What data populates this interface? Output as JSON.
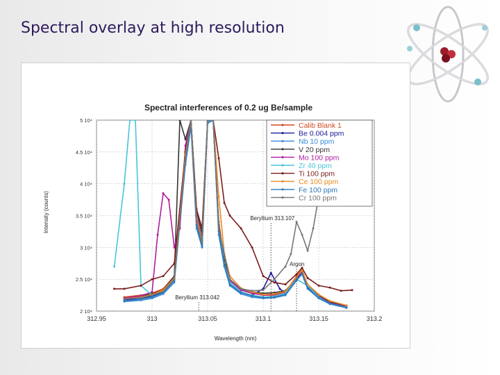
{
  "slide": {
    "title": "Spectral overlay at high resolution"
  },
  "logo": {
    "icon": "atom-icon"
  },
  "chart_data": {
    "type": "line",
    "title": "Spectral interferences of 0.2 ug Be/sample",
    "xlabel": "Wavelength (nm)",
    "ylabel": "Intensity (counts)",
    "xlim": [
      312.95,
      313.2
    ],
    "ylim": [
      20000,
      50000
    ],
    "x_ticks": [
      312.95,
      313,
      313.05,
      313.1,
      313.15,
      313.2
    ],
    "x_tick_labels": [
      "312.95",
      "313",
      "313.05",
      "313.1",
      "313.15",
      "313.2"
    ],
    "y_ticks": [
      20000,
      25000,
      30000,
      35000,
      40000,
      45000,
      50000
    ],
    "y_tick_labels": [
      "2 10⁴",
      "2.5 10⁴",
      "3 10⁴",
      "3.5 10⁴",
      "4 10⁴",
      "4.5 10⁴",
      "5 10⁴"
    ],
    "legend_position": "top-right",
    "annotations": [
      {
        "text": "Beryllium 313.042",
        "x": 313.042
      },
      {
        "text": "Beryllium 313.107",
        "x": 313.107
      },
      {
        "text": "Argon",
        "x": 313.13
      }
    ],
    "series": [
      {
        "name": "Calib Blank 1",
        "color": "#d04a1f",
        "x": [
          312.975,
          312.99,
          313.0,
          313.01,
          313.02,
          313.03,
          313.035,
          313.04,
          313.045,
          313.05,
          313.055,
          313.06,
          313.065,
          313.07,
          313.08,
          313.09,
          313.1,
          313.11,
          313.12,
          313.13,
          313.135,
          313.14,
          313.15,
          313.16,
          313.175
        ],
        "y": [
          22200,
          22500,
          22800,
          23500,
          25500,
          45000,
          50000,
          35000,
          31000,
          50000,
          50000,
          34000,
          28000,
          25000,
          23500,
          23000,
          22500,
          22500,
          23000,
          25500,
          26500,
          24000,
          22500,
          21500,
          20800
        ]
      },
      {
        "name": "Be 0.004 ppm",
        "color": "#1a1a9a",
        "x": [
          312.975,
          312.99,
          313.0,
          313.01,
          313.02,
          313.03,
          313.035,
          313.04,
          313.045,
          313.05,
          313.055,
          313.06,
          313.065,
          313.07,
          313.08,
          313.09,
          313.1,
          313.107,
          313.115,
          313.12,
          313.13,
          313.135,
          313.14,
          313.15,
          313.16,
          313.175
        ],
        "y": [
          21800,
          22000,
          22300,
          23000,
          25000,
          44000,
          50000,
          34000,
          30500,
          50000,
          50000,
          33000,
          27500,
          24500,
          23000,
          22500,
          23500,
          26000,
          23500,
          22800,
          25000,
          26000,
          23800,
          22300,
          21300,
          20700
        ]
      },
      {
        "name": "Nb 10 ppm",
        "color": "#3a8ad8",
        "x": [
          312.975,
          312.99,
          313.0,
          313.01,
          313.02,
          313.03,
          313.035,
          313.04,
          313.045,
          313.05,
          313.055,
          313.06,
          313.065,
          313.07,
          313.08,
          313.09,
          313.1,
          313.11,
          313.12,
          313.13,
          313.135,
          313.14,
          313.15,
          313.16,
          313.175
        ],
        "y": [
          21500,
          21700,
          22000,
          22700,
          24500,
          43000,
          49000,
          33000,
          30000,
          49500,
          50000,
          32000,
          27000,
          24000,
          22700,
          22200,
          22000,
          22100,
          22500,
          24800,
          25800,
          23500,
          22000,
          21100,
          20500
        ]
      },
      {
        "name": "V 20 ppm",
        "color": "#333333",
        "x": [
          312.975,
          312.99,
          313.0,
          313.01,
          313.02,
          313.025,
          313.03,
          313.035,
          313.04,
          313.045,
          313.05,
          313.055,
          313.06,
          313.065,
          313.07,
          313.08,
          313.09,
          313.1,
          313.11,
          313.12,
          313.13,
          313.135,
          313.14,
          313.15,
          313.16,
          313.175
        ],
        "y": [
          22000,
          22300,
          22700,
          23300,
          25500,
          50000,
          47000,
          50000,
          36000,
          32000,
          50000,
          50000,
          33500,
          28000,
          25000,
          23500,
          23000,
          22800,
          22900,
          23200,
          25200,
          26200,
          24000,
          22400,
          21400,
          20800
        ]
      },
      {
        "name": "Mo 100 ppm",
        "color": "#b01ca0",
        "x": [
          312.975,
          312.99,
          313.0,
          313.005,
          313.01,
          313.015,
          313.02,
          313.025,
          313.03,
          313.035,
          313.04,
          313.045,
          313.05,
          313.055,
          313.06,
          313.065,
          313.07,
          313.08,
          313.09,
          313.1,
          313.11,
          313.12,
          313.13,
          313.135,
          313.14,
          313.15,
          313.16,
          313.175
        ],
        "y": [
          22000,
          22400,
          23000,
          32000,
          38500,
          37500,
          30000,
          33000,
          46000,
          50000,
          35000,
          31000,
          50000,
          50000,
          33000,
          27500,
          24800,
          23300,
          22800,
          22500,
          22600,
          23000,
          25200,
          26200,
          23900,
          22300,
          21300,
          20700
        ]
      },
      {
        "name": "Zr 40 ppm",
        "color": "#48c4d8",
        "x": [
          312.966,
          312.975,
          312.98,
          312.985,
          312.99,
          313.0,
          313.01,
          313.02,
          313.03,
          313.035,
          313.04,
          313.045,
          313.05,
          313.055,
          313.06,
          313.065,
          313.07,
          313.08,
          313.09,
          313.1,
          313.11,
          313.12,
          313.13,
          313.14,
          313.15,
          313.16,
          313.175
        ],
        "y": [
          27000,
          40000,
          50000,
          50000,
          24000,
          22500,
          23200,
          25000,
          44000,
          50000,
          34000,
          30500,
          50000,
          50000,
          33000,
          27500,
          24500,
          23000,
          22500,
          22200,
          22300,
          22800,
          25000,
          24000,
          22200,
          21200,
          20600
        ]
      },
      {
        "name": "Ti 100 ppm",
        "color": "#7a1a1a",
        "x": [
          312.966,
          312.975,
          312.99,
          313.0,
          313.01,
          313.02,
          313.03,
          313.035,
          313.04,
          313.045,
          313.05,
          313.055,
          313.06,
          313.065,
          313.07,
          313.08,
          313.09,
          313.1,
          313.11,
          313.12,
          313.13,
          313.135,
          313.14,
          313.15,
          313.16,
          313.17,
          313.18
        ],
        "y": [
          23500,
          23500,
          24000,
          25000,
          25500,
          27500,
          45000,
          50000,
          36000,
          33000,
          50000,
          50000,
          44000,
          37000,
          35000,
          33000,
          30000,
          25500,
          24500,
          24200,
          25800,
          26800,
          25200,
          24000,
          23700,
          23200,
          23300
        ]
      },
      {
        "name": "Ce 100 ppm",
        "color": "#e88a20",
        "x": [
          312.975,
          312.99,
          313.0,
          313.01,
          313.02,
          313.03,
          313.035,
          313.04,
          313.045,
          313.05,
          313.055,
          313.06,
          313.065,
          313.07,
          313.08,
          313.09,
          313.1,
          313.11,
          313.12,
          313.13,
          313.135,
          313.14,
          313.15,
          313.16,
          313.175
        ],
        "y": [
          21900,
          22200,
          22600,
          23300,
          25200,
          44500,
          50000,
          34500,
          31000,
          50000,
          50000,
          38000,
          29000,
          25500,
          23600,
          23000,
          22600,
          22700,
          23100,
          25400,
          26400,
          24200,
          22600,
          21600,
          20900
        ]
      },
      {
        "name": "Fe 100 ppm",
        "color": "#2a7ab8",
        "x": [
          312.975,
          312.99,
          313.0,
          313.01,
          313.02,
          313.03,
          313.035,
          313.04,
          313.045,
          313.05,
          313.055,
          313.06,
          313.065,
          313.07,
          313.08,
          313.09,
          313.1,
          313.11,
          313.12,
          313.13,
          313.135,
          313.14,
          313.15,
          313.16,
          313.175
        ],
        "y": [
          21600,
          21900,
          22200,
          22900,
          24800,
          43500,
          49500,
          33500,
          30200,
          49800,
          50000,
          32500,
          27200,
          24200,
          22900,
          22400,
          22100,
          22200,
          22600,
          24900,
          25900,
          23600,
          22100,
          21200,
          20550
        ]
      },
      {
        "name": "Cr 100 ppm",
        "color": "#777777",
        "x": [
          312.975,
          312.99,
          313.0,
          313.01,
          313.02,
          313.03,
          313.035,
          313.04,
          313.045,
          313.05,
          313.055,
          313.06,
          313.07,
          313.08,
          313.09,
          313.1,
          313.11,
          313.12,
          313.125,
          313.13,
          313.135,
          313.14,
          313.145,
          313.15,
          313.155
        ],
        "y": [
          21900,
          22100,
          22500,
          23100,
          25000,
          44000,
          50000,
          34000,
          30800,
          50000,
          50000,
          33000,
          25000,
          23500,
          23200,
          23300,
          25000,
          27000,
          29000,
          34000,
          32000,
          29500,
          33000,
          38000,
          43000
        ]
      }
    ]
  }
}
